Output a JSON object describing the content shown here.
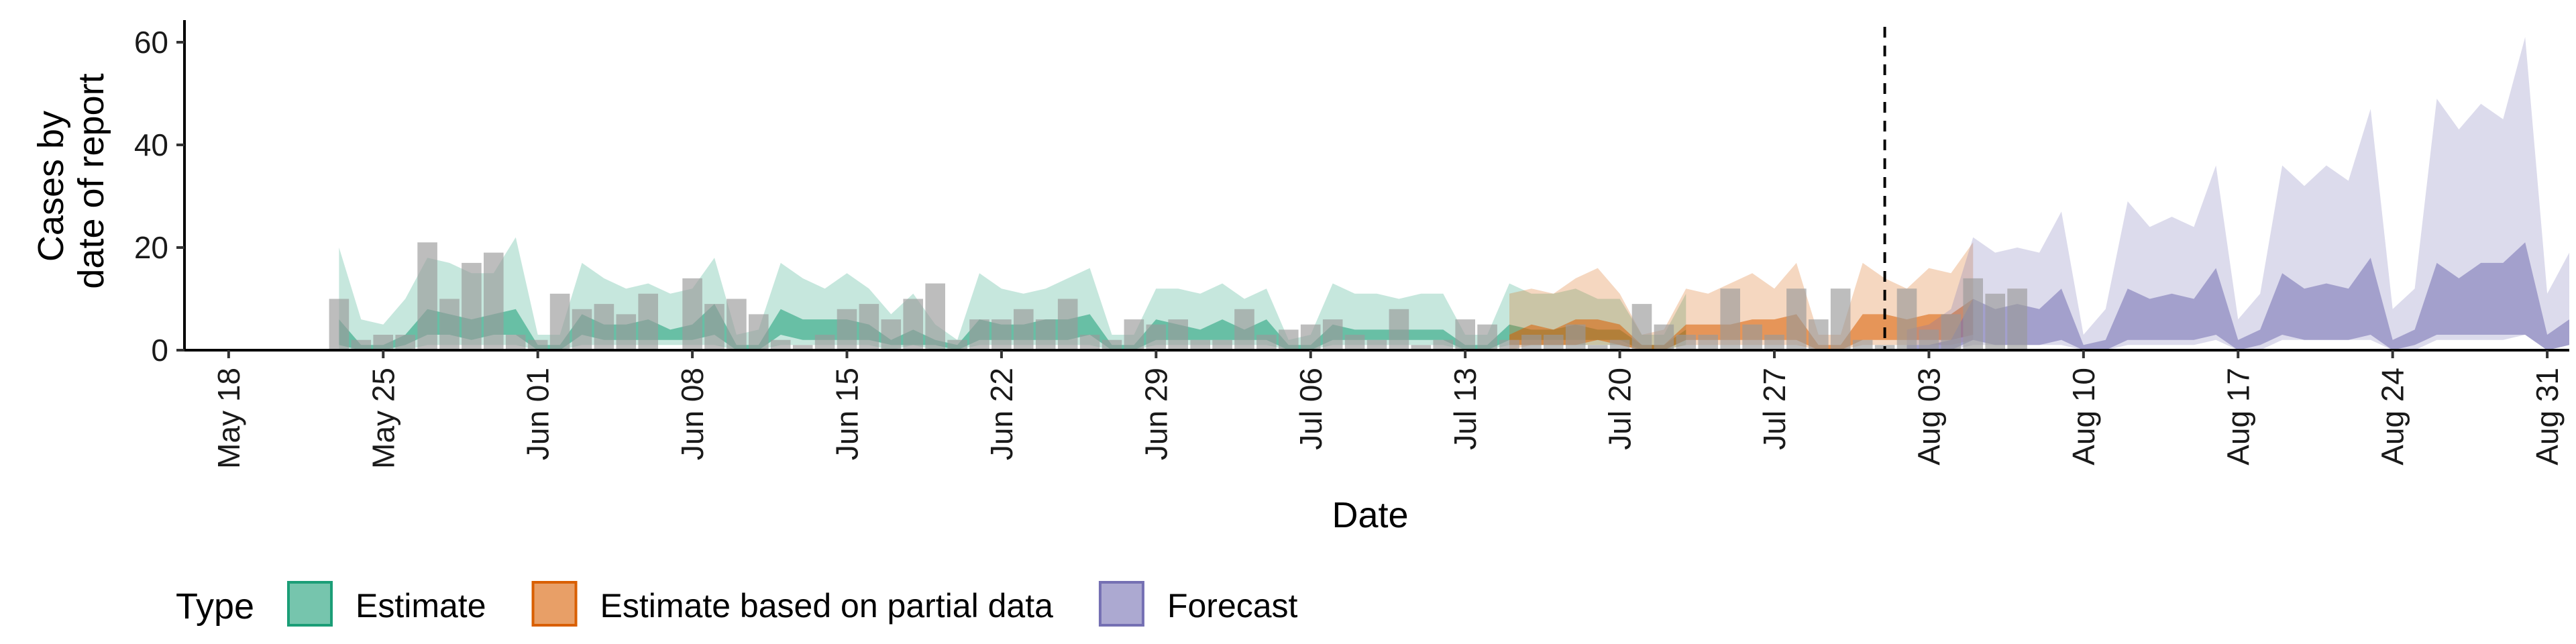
{
  "chart_data": {
    "type": "area",
    "xlabel": "Date",
    "ylabel_lines": [
      "Cases by",
      "date of report"
    ],
    "ylim": [
      0,
      63
    ],
    "yticks": [
      0,
      20,
      40,
      60
    ],
    "grid": false,
    "x_start": "2020-05-16",
    "x_end": "2020-09-01",
    "xticks": [
      {
        "date": "2020-05-18",
        "label": "May 18"
      },
      {
        "date": "2020-05-25",
        "label": "May 25"
      },
      {
        "date": "2020-06-01",
        "label": "Jun 01"
      },
      {
        "date": "2020-06-08",
        "label": "Jun 08"
      },
      {
        "date": "2020-06-15",
        "label": "Jun 15"
      },
      {
        "date": "2020-06-22",
        "label": "Jun 22"
      },
      {
        "date": "2020-06-29",
        "label": "Jun 29"
      },
      {
        "date": "2020-07-06",
        "label": "Jul 06"
      },
      {
        "date": "2020-07-13",
        "label": "Jul 13"
      },
      {
        "date": "2020-07-20",
        "label": "Jul 20"
      },
      {
        "date": "2020-07-27",
        "label": "Jul 27"
      },
      {
        "date": "2020-08-03",
        "label": "Aug 03"
      },
      {
        "date": "2020-08-10",
        "label": "Aug 10"
      },
      {
        "date": "2020-08-17",
        "label": "Aug 17"
      },
      {
        "date": "2020-08-24",
        "label": "Aug 24"
      },
      {
        "date": "2020-08-31",
        "label": "Aug 31"
      }
    ],
    "forecast_cutoff": "2020-08-01",
    "legend_position": "bottom-left",
    "legend_title": "Type",
    "series": [
      {
        "name": "Estimate",
        "color": "#1b9e77",
        "start_date": "2020-05-23",
        "outer_upper": [
          20,
          6,
          5,
          10,
          18,
          17,
          15,
          15,
          22,
          3,
          3,
          17,
          14,
          12,
          13,
          11,
          12,
          18,
          3,
          4,
          17,
          14,
          12,
          15,
          12,
          7,
          11,
          5,
          2,
          15,
          12,
          11,
          12,
          14,
          16,
          3,
          3,
          12,
          12,
          11,
          13,
          10,
          12,
          2,
          3,
          13,
          11,
          11,
          10,
          11,
          11,
          3,
          3,
          13,
          11,
          11,
          12,
          10,
          10,
          3,
          3,
          11
        ],
        "outer_lower": [
          0,
          0,
          0,
          0,
          1,
          1,
          1,
          1,
          1,
          0,
          0,
          1,
          1,
          1,
          1,
          1,
          1,
          1,
          0,
          0,
          1,
          1,
          1,
          1,
          1,
          0,
          1,
          0,
          0,
          1,
          1,
          1,
          1,
          1,
          1,
          0,
          0,
          1,
          1,
          1,
          1,
          1,
          1,
          0,
          0,
          1,
          1,
          1,
          1,
          1,
          1,
          0,
          0,
          1,
          1,
          1,
          1,
          1,
          1,
          0,
          0,
          1
        ],
        "inner_upper": [
          6,
          1,
          1,
          3,
          8,
          7,
          6,
          7,
          8,
          1,
          1,
          7,
          5,
          5,
          6,
          4,
          5,
          9,
          1,
          1,
          8,
          6,
          6,
          6,
          5,
          2,
          4,
          2,
          1,
          6,
          5,
          5,
          6,
          6,
          7,
          1,
          1,
          6,
          5,
          4,
          6,
          4,
          6,
          1,
          1,
          5,
          4,
          4,
          4,
          4,
          4,
          1,
          1,
          5,
          4,
          4,
          5,
          4,
          4,
          1,
          1,
          4
        ],
        "inner_lower": [
          1,
          0,
          0,
          1,
          3,
          3,
          2,
          3,
          3,
          0,
          0,
          3,
          2,
          2,
          2,
          2,
          2,
          3,
          0,
          0,
          3,
          2,
          2,
          2,
          2,
          1,
          1,
          1,
          0,
          2,
          2,
          2,
          2,
          2,
          3,
          0,
          0,
          2,
          2,
          2,
          2,
          2,
          2,
          0,
          0,
          2,
          2,
          2,
          2,
          2,
          2,
          0,
          0,
          2,
          2,
          2,
          2,
          2,
          2,
          0,
          0,
          2
        ]
      },
      {
        "name": "Estimate based on partial data",
        "color": "#d95f02",
        "start_date": "2020-07-15",
        "outer_upper": [
          11,
          12,
          11,
          14,
          16,
          11,
          3,
          4,
          12,
          11,
          13,
          15,
          12,
          17,
          3,
          3,
          17,
          14,
          12,
          16,
          15,
          21
        ],
        "outer_lower": [
          0,
          1,
          1,
          1,
          1,
          1,
          0,
          0,
          1,
          1,
          1,
          1,
          1,
          1,
          0,
          0,
          1,
          1,
          1,
          1,
          1,
          2
        ],
        "inner_upper": [
          3,
          5,
          4,
          6,
          6,
          5,
          1,
          1,
          5,
          5,
          5,
          6,
          6,
          7,
          1,
          1,
          7,
          7,
          6,
          7,
          7,
          10
        ],
        "inner_lower": [
          1,
          1,
          1,
          1,
          2,
          1,
          0,
          0,
          2,
          2,
          2,
          2,
          2,
          2,
          0,
          0,
          2,
          2,
          2,
          2,
          2,
          3
        ]
      },
      {
        "name": "Forecast",
        "color": "#7570b3",
        "start_date": "2020-08-02",
        "outer_upper": [
          4,
          5,
          8,
          22,
          19,
          20,
          19,
          27,
          3,
          8,
          29,
          24,
          26,
          24,
          36,
          6,
          11,
          36,
          32,
          36,
          33,
          47,
          8,
          12,
          49,
          43,
          48,
          45,
          61,
          11,
          19
        ],
        "outer_lower": [
          0,
          0,
          0,
          1,
          1,
          1,
          1,
          1,
          0,
          0,
          1,
          1,
          1,
          1,
          2,
          0,
          0,
          2,
          2,
          2,
          2,
          2,
          0,
          0,
          2,
          2,
          2,
          2,
          3,
          0,
          1
        ],
        "inner_upper": [
          1,
          1,
          2,
          10,
          8,
          9,
          8,
          12,
          1,
          2,
          12,
          10,
          11,
          10,
          16,
          2,
          4,
          15,
          12,
          13,
          12,
          18,
          2,
          4,
          17,
          14,
          17,
          17,
          21,
          3,
          6
        ],
        "inner_lower": [
          0,
          0,
          0,
          2,
          1,
          1,
          1,
          2,
          0,
          0,
          2,
          2,
          2,
          2,
          3,
          0,
          1,
          3,
          2,
          2,
          2,
          3,
          0,
          1,
          3,
          3,
          3,
          3,
          3,
          0,
          1
        ]
      }
    ],
    "reported_cases": {
      "color": "#999999",
      "start_date": "2020-05-23",
      "values": [
        10,
        2,
        3,
        3,
        21,
        10,
        17,
        19,
        3,
        2,
        11,
        8,
        9,
        7,
        11,
        0,
        14,
        9,
        10,
        7,
        2,
        1,
        3,
        8,
        9,
        6,
        10,
        13,
        2,
        6,
        6,
        8,
        6,
        10,
        3,
        2,
        6,
        5,
        6,
        2,
        2,
        8,
        3,
        4,
        5,
        6,
        3,
        2,
        8,
        1,
        2,
        6,
        5,
        2,
        3,
        3,
        5,
        1,
        2,
        9,
        5,
        3,
        3,
        12,
        5,
        3,
        12,
        6,
        12,
        2,
        1,
        12,
        4,
        7,
        14,
        11,
        12
      ]
    }
  }
}
